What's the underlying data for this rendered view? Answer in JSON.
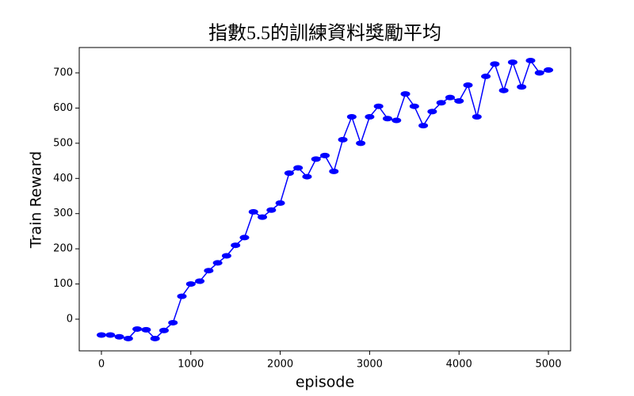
{
  "chart_data": {
    "type": "line",
    "title": "指數5.5的訓練資料獎勵平均",
    "x_label": "episode",
    "y_label": "Train Reward",
    "x": [
      0,
      100,
      200,
      300,
      400,
      500,
      600,
      700,
      800,
      900,
      1000,
      1100,
      1200,
      1300,
      1400,
      1500,
      1600,
      1700,
      1800,
      1900,
      2000,
      2100,
      2200,
      2300,
      2400,
      2500,
      2600,
      2700,
      2800,
      2900,
      3000,
      3100,
      3200,
      3300,
      3400,
      3500,
      3600,
      3700,
      3800,
      3900,
      4000,
      4100,
      4200,
      4300,
      4400,
      4500,
      4600,
      4700,
      4800,
      4900,
      5000
    ],
    "series": [
      {
        "name": "Train Reward",
        "color": "#0000ff",
        "values": [
          -45,
          -45,
          -50,
          -55,
          -28,
          -30,
          -55,
          -32,
          -10,
          65,
          100,
          108,
          138,
          160,
          180,
          210,
          232,
          305,
          290,
          310,
          330,
          415,
          430,
          405,
          455,
          465,
          420,
          510,
          575,
          500,
          575,
          605,
          570,
          565,
          640,
          605,
          550,
          590,
          615,
          630,
          620,
          665,
          575,
          690,
          725,
          650,
          730,
          660,
          735,
          700,
          708
        ]
      }
    ],
    "xlim": [
      -248,
      5248
    ],
    "ylim": [
      -90,
      772
    ],
    "xticks": [
      0,
      1000,
      2000,
      3000,
      4000,
      5000
    ],
    "yticks": [
      0,
      100,
      200,
      300,
      400,
      500,
      600,
      700
    ]
  }
}
